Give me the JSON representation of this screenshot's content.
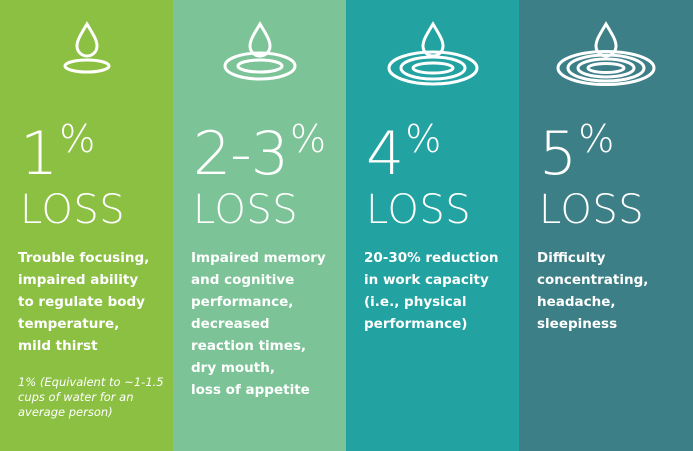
{
  "columns": [
    {
      "percent": "1",
      "percent_sign": "%",
      "loss": "LOSS",
      "description": "Trouble focusing,\nimpaired ability\nto regulate body\ntemperature,\nmild thirst",
      "note": "1% (Equivalent to ~1-1.5\ncups of water for an\naverage person)",
      "color": "#8cc043",
      "icon": "water-drop-icon"
    },
    {
      "percent": "2-3",
      "percent_sign": "%",
      "loss": "LOSS",
      "description": "Impaired memory\nand cognitive\nperformance,\ndecreased\nreaction times,\ndry mouth,\nloss of appetite",
      "color": "#7cc497",
      "icon": "water-drop-ripple-icon"
    },
    {
      "percent": "4",
      "percent_sign": "%",
      "loss": "LOSS",
      "description": "20-30% reduction\nin work capacity\n(i.e., physical\nperformance)",
      "color": "#23a2a2",
      "icon": "water-drop-ripples-icon"
    },
    {
      "percent": "5",
      "percent_sign": "%",
      "loss": "LOSS",
      "description": "Difficulty\nconcentrating,\nheadache,\nsleepiness",
      "color": "#3d7f86",
      "icon": "water-drop-many-ripples-icon"
    }
  ]
}
